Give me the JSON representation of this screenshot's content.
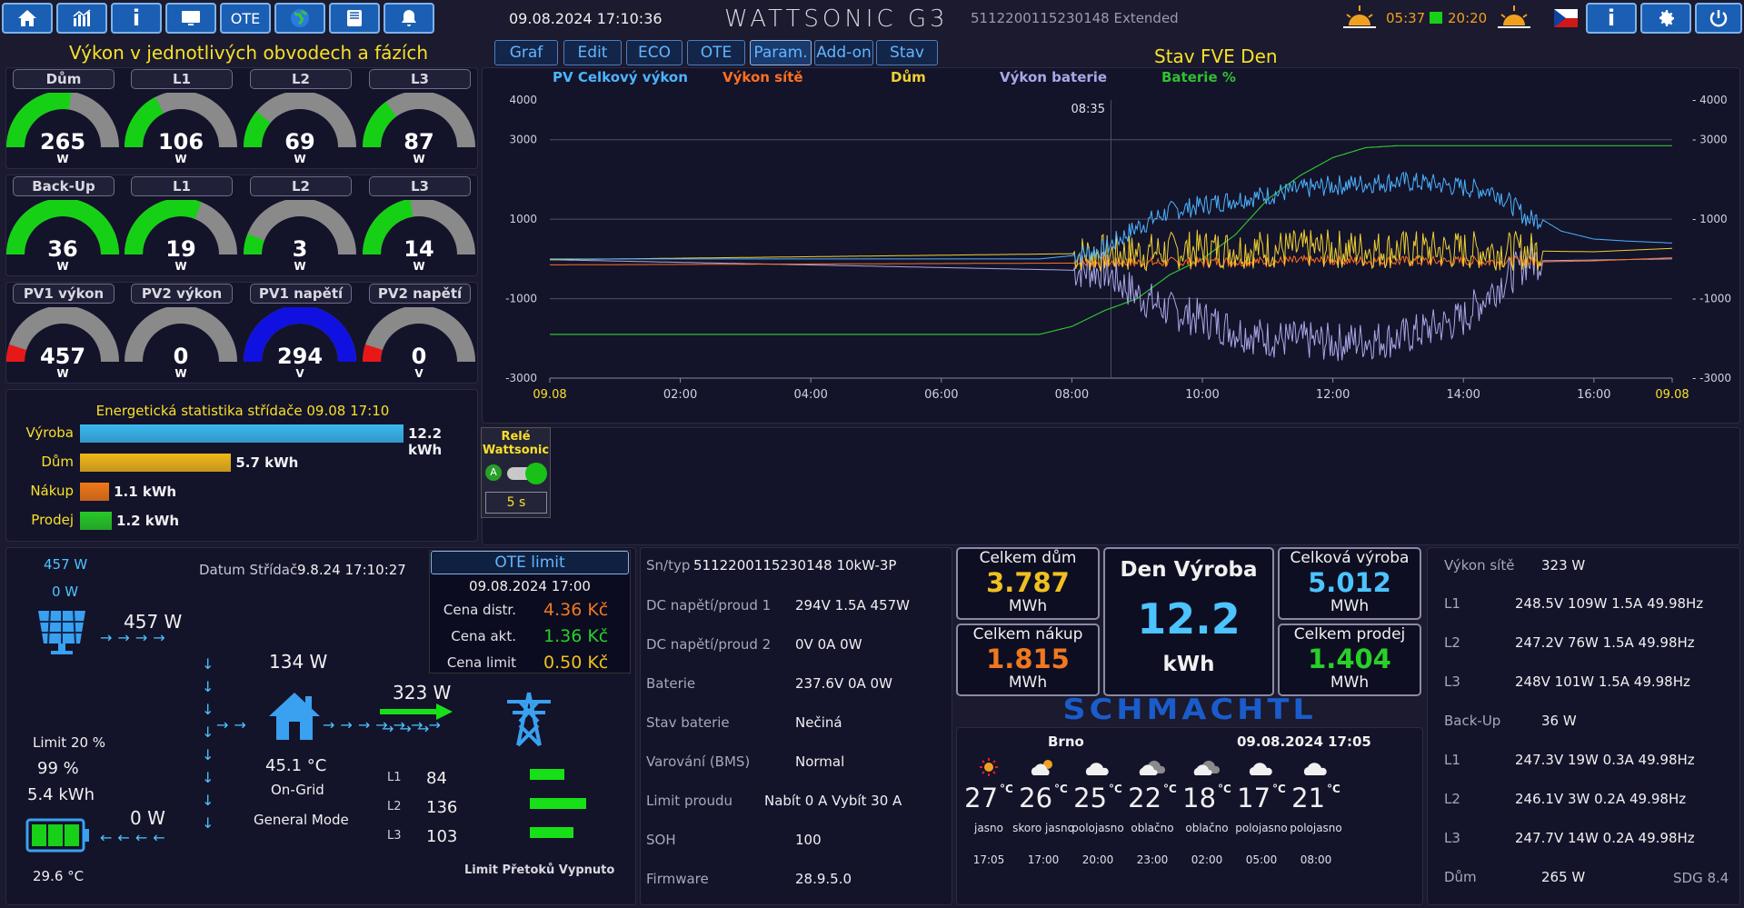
{
  "nav": {
    "ote_label": "OTE",
    "info_glyph": "i",
    "datetime": "09.08.2024 17:10:36",
    "brand": "WATTSONIC G3",
    "serial_ext": "5112200115230148 Extended",
    "sunrise": "05:37",
    "sunset": "20:20"
  },
  "tabs": [
    "Graf",
    "Edit",
    "ECO",
    "OTE",
    "Param.",
    "Add-on",
    "Stav"
  ],
  "left_title": "Výkon v jednotlivých obvodech a fázích",
  "chart_title": "Stav FVE Den",
  "gauges": {
    "row1": [
      {
        "title": "Dům",
        "value": "265",
        "unit": "W",
        "fill": 0.55,
        "color": "#16d016"
      },
      {
        "title": "L1",
        "value": "106",
        "unit": "W",
        "fill": 0.35,
        "color": "#16d016"
      },
      {
        "title": "L2",
        "value": "69",
        "unit": "W",
        "fill": 0.22,
        "color": "#16d016"
      },
      {
        "title": "L3",
        "value": "87",
        "unit": "W",
        "fill": 0.3,
        "color": "#16d016"
      }
    ],
    "row2": [
      {
        "title": "Back-Up",
        "value": "36",
        "unit": "W",
        "fill": 1.0,
        "color": "#16d016"
      },
      {
        "title": "L1",
        "value": "19",
        "unit": "W",
        "fill": 0.62,
        "color": "#16d016"
      },
      {
        "title": "L2",
        "value": "3",
        "unit": "W",
        "fill": 0.12,
        "color": "#16d016"
      },
      {
        "title": "L3",
        "value": "14",
        "unit": "W",
        "fill": 0.45,
        "color": "#16d016"
      }
    ],
    "row3": [
      {
        "title": "PV1 výkon",
        "value": "457",
        "unit": "W",
        "fill": 0.1,
        "color": "#e81818"
      },
      {
        "title": "PV2 výkon",
        "value": "0",
        "unit": "W",
        "fill": 0,
        "color": "#e81818"
      },
      {
        "title": "PV1 napětí",
        "value": "294",
        "unit": "V",
        "fill": 1.0,
        "color": "#1010e0"
      },
      {
        "title": "PV2 napětí",
        "value": "0",
        "unit": "V",
        "fill": 0.1,
        "color": "#e81818"
      }
    ]
  },
  "energy": {
    "title": "Energetická statistika střídače 09.08 17:10",
    "rows": [
      {
        "label": "Výroba",
        "value": "12.2 kWh",
        "num": 12.2,
        "color": "#3ab8ee"
      },
      {
        "label": "Dům",
        "value": "5.7 kWh",
        "num": 5.7,
        "color": "#f0b818"
      },
      {
        "label": "Nákup",
        "value": "1.1 kWh",
        "num": 1.1,
        "color": "#f07818"
      },
      {
        "label": "Prodej",
        "value": "1.2 kWh",
        "num": 1.2,
        "color": "#28c828"
      }
    ]
  },
  "relay": {
    "title_line1": "Relé",
    "title_line2": "Wattsonic",
    "toggle_letter": "A",
    "interval": "5 s"
  },
  "chart_data": {
    "type": "line",
    "title": "",
    "series": [
      {
        "name": "PV Celkový výkon",
        "color": "#4cb4ff"
      },
      {
        "name": "Výkon sítě",
        "color": "#ff7020"
      },
      {
        "name": "Dům",
        "color": "#f0d030"
      },
      {
        "name": "Výkon baterie",
        "color": "#a8a8e8"
      },
      {
        "name": "Baterie %",
        "color": "#30c030"
      }
    ],
    "yticks_left": [
      "4000",
      "3000",
      "1000",
      "-1000",
      "-3000"
    ],
    "yticks_right": [
      "4000",
      "3000",
      "1000",
      "-1000",
      "-3000"
    ],
    "xticks": [
      "09.08",
      "02:00",
      "04:00",
      "06:00",
      "08:00",
      "10:00",
      "12:00",
      "14:00",
      "16:00",
      "09.08"
    ],
    "cursor_label": "08:35",
    "ylim": [
      -3000,
      4000
    ],
    "pv": [
      [
        0,
        0
      ],
      [
        7.5,
        0
      ],
      [
        8,
        80
      ],
      [
        8.5,
        250
      ],
      [
        9,
        800
      ],
      [
        9.5,
        1200
      ],
      [
        10,
        1350
      ],
      [
        10.5,
        1500
      ],
      [
        11,
        1600
      ],
      [
        11.5,
        1750
      ],
      [
        12,
        1850
      ],
      [
        12.5,
        1900
      ],
      [
        13,
        1950
      ],
      [
        13.5,
        1900
      ],
      [
        14,
        1800
      ],
      [
        14.5,
        1700
      ],
      [
        15,
        1000
      ],
      [
        15.2,
        1000
      ],
      [
        15.5,
        700
      ],
      [
        16,
        500
      ],
      [
        16.5,
        450
      ],
      [
        17.2,
        400
      ]
    ],
    "grid": [
      [
        0,
        -150
      ],
      [
        9,
        -100
      ],
      [
        12,
        -50
      ],
      [
        15,
        -80
      ],
      [
        16,
        -50
      ],
      [
        17.2,
        30
      ]
    ],
    "house": [
      [
        0,
        -20
      ],
      [
        9,
        150
      ],
      [
        10,
        250
      ],
      [
        12,
        250
      ],
      [
        14,
        220
      ],
      [
        16,
        180
      ],
      [
        17.2,
        265
      ]
    ],
    "batt": [
      [
        0,
        -20
      ],
      [
        8.5,
        -300
      ],
      [
        9,
        -900
      ],
      [
        9.5,
        -1300
      ],
      [
        10,
        -1500
      ],
      [
        10.5,
        -1800
      ],
      [
        11,
        -2000
      ],
      [
        12,
        -2100
      ],
      [
        13,
        -2000
      ],
      [
        14,
        -1500
      ],
      [
        14.5,
        -700
      ],
      [
        15,
        -50
      ],
      [
        17.2,
        0
      ]
    ],
    "soc": [
      [
        0,
        -1900
      ],
      [
        7.5,
        -1900
      ],
      [
        8,
        -1700
      ],
      [
        8.5,
        -1300
      ],
      [
        9,
        -1000
      ],
      [
        9.5,
        -400
      ],
      [
        10,
        0
      ],
      [
        10.5,
        600
      ],
      [
        11,
        1500
      ],
      [
        11.5,
        2100
      ],
      [
        12,
        2550
      ],
      [
        12.5,
        2800
      ],
      [
        13,
        2850
      ],
      [
        14.8,
        2850
      ],
      [
        17.2,
        2850
      ]
    ]
  },
  "flow": {
    "pv_total": "457 W",
    "pv2": "0 W",
    "pv_flow": "457 W",
    "datum_label": "Datum Střídač",
    "datum_value": "9.8.24 17:10:27",
    "house_w": "134 W",
    "grid_w": "323 W",
    "temp": "45.1 °C",
    "mode1": "On-Grid",
    "mode2": "General Mode",
    "limit": "Limit 20 %",
    "soc": "99 %",
    "kwh": "5.4 kWh",
    "batt_w": "0 W",
    "batt_temp": "29.6 °C",
    "phases": [
      {
        "label": "L1",
        "value": "84"
      },
      {
        "label": "L2",
        "value": "136"
      },
      {
        "label": "L3",
        "value": "103"
      }
    ],
    "limit_text": "Limit Přetoků Vypnuto"
  },
  "ote": {
    "title": "OTE limit",
    "time": "09.08.2024 17:00",
    "rows": [
      {
        "label": "Cena distr.",
        "value": "4.36 Kč",
        "color": "#f07820"
      },
      {
        "label": "Cena akt.",
        "value": "1.36 Kč",
        "color": "#28d028"
      },
      {
        "label": "Cena limit",
        "value": "0.50 Kč",
        "color": "#f0c020"
      }
    ]
  },
  "params": {
    "sn_label": "Sn/typ",
    "sn_value": "5112200115230148 10kW-3P",
    "rows": [
      {
        "label": "DC napětí/proud 1",
        "value": "294V 1.5A 457W"
      },
      {
        "label": "DC napětí/proud 2",
        "value": "0V 0A 0W"
      },
      {
        "label": "Baterie",
        "value": "237.6V 0A 0W"
      },
      {
        "label": "Stav baterie",
        "value": "Nečiná"
      },
      {
        "label": "Varování (BMS)",
        "value": "Normal"
      },
      {
        "label": "Limit proudu",
        "value": "Nabít 0 A  Vybít 30 A"
      },
      {
        "label": "SOH",
        "value": "100"
      },
      {
        "label": "Firmware",
        "value": "28.9.5.0"
      }
    ]
  },
  "tiles": {
    "house": {
      "label": "Celkem dům",
      "value": "3.787",
      "unit": "MWh",
      "color": "#f0c020"
    },
    "buy": {
      "label": "Celkem nákup",
      "value": "1.815",
      "unit": "MWh",
      "color": "#f07820"
    },
    "day": {
      "label": "Den Výroba",
      "value": "12.2",
      "unit": "kWh",
      "color": "#4cc4ff"
    },
    "prod": {
      "label": "Celková výroba",
      "value": "5.012",
      "unit": "MWh",
      "color": "#4cc4ff"
    },
    "sell": {
      "label": "Celkem prodej",
      "value": "1.404",
      "unit": "MWh",
      "color": "#28d028"
    }
  },
  "logo": "SCHMACHTL",
  "weather": {
    "city": "Brno",
    "datetime": "09.08.2024 17:05",
    "unit": "°C",
    "items": [
      {
        "temp": "27",
        "desc": "jasno",
        "time": "17:05",
        "icon": "sun-icon"
      },
      {
        "temp": "26",
        "desc": "skoro jasno",
        "time": "17:00",
        "icon": "sun-cloud-icon"
      },
      {
        "temp": "25",
        "desc": "polojasno",
        "time": "20:00",
        "icon": "cloud-icon"
      },
      {
        "temp": "22",
        "desc": "oblačno",
        "time": "23:00",
        "icon": "dark-cloud-icon"
      },
      {
        "temp": "18",
        "desc": "oblačno",
        "time": "02:00",
        "icon": "dark-cloud-icon"
      },
      {
        "temp": "17",
        "desc": "polojasno",
        "time": "05:00",
        "icon": "cloud-icon"
      },
      {
        "temp": "21",
        "desc": "polojasno",
        "time": "08:00",
        "icon": "cloud-icon"
      }
    ]
  },
  "grid_panel": {
    "title_label": "Výkon sítě",
    "title_value": "323 W",
    "rows": [
      {
        "label": "L1",
        "value": "248.5V 109W 1.5A 49.98Hz"
      },
      {
        "label": "L2",
        "value": "247.2V 76W 1.5A 49.98Hz"
      },
      {
        "label": "L3",
        "value": "248V 101W 1.5A 49.98Hz"
      },
      {
        "label": "Back-Up",
        "value": "36 W"
      },
      {
        "label": "L1",
        "value": "247.3V 19W 0.3A 49.98Hz"
      },
      {
        "label": "L2",
        "value": "246.1V 3W 0.2A 49.98Hz"
      },
      {
        "label": "L3",
        "value": "247.7V 14W 0.2A 49.98Hz"
      },
      {
        "label": "Dům",
        "value": "265 W"
      }
    ],
    "footer": "SDG 8.4"
  }
}
